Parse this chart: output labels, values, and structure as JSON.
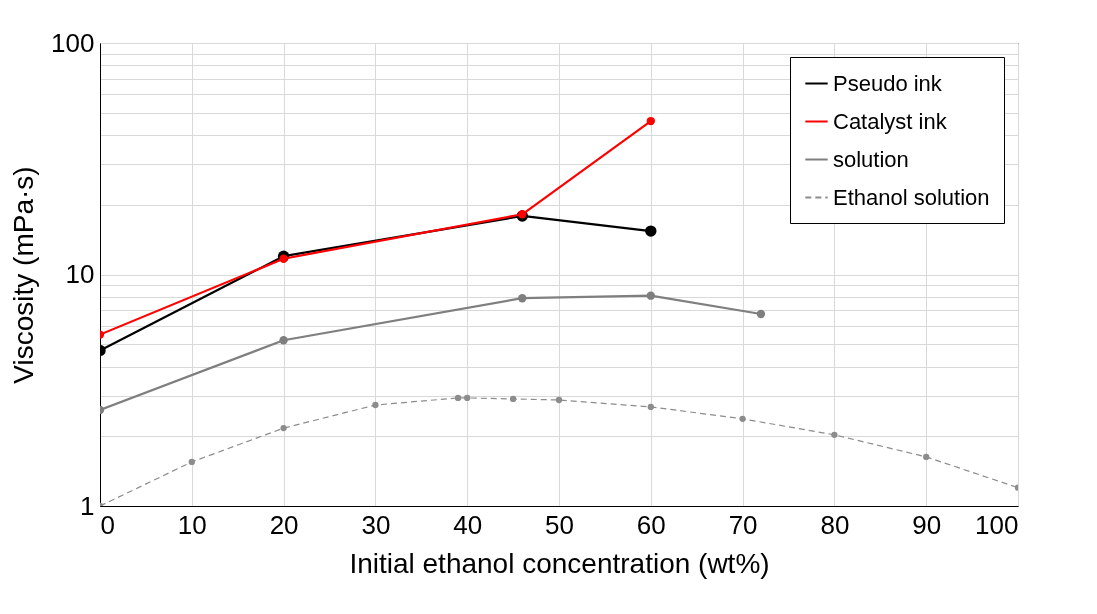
{
  "chart_data": {
    "type": "line",
    "xlabel": "Initial ethanol concentration (wt%)",
    "ylabel": "Viscosity (mPa·s)",
    "log": "y",
    "grid": true,
    "legend": "top right",
    "marker": "circle",
    "xlim": [
      0,
      100
    ],
    "xticks": [
      0,
      10,
      20,
      30,
      40,
      50,
      60,
      70,
      80,
      90,
      100
    ],
    "ylim": [
      1,
      100
    ],
    "yticks": [
      1,
      {
        "value": 2,
        "label": null
      },
      {
        "value": 3,
        "label": null
      },
      {
        "value": 4,
        "label": null
      },
      {
        "value": 5,
        "label": null
      },
      {
        "value": 6,
        "label": null
      },
      {
        "value": 7,
        "label": null
      },
      {
        "value": 8,
        "label": null
      },
      {
        "value": 9,
        "label": null
      },
      10,
      {
        "value": 20,
        "label": null
      },
      {
        "value": 30,
        "label": null
      },
      {
        "value": 40,
        "label": null
      },
      {
        "value": 50,
        "label": null
      },
      {
        "value": 60,
        "label": null
      },
      {
        "value": 70,
        "label": null
      },
      {
        "value": 80,
        "label": null
      },
      {
        "value": 90,
        "label": null
      },
      100
    ],
    "series": [
      {
        "name": "Pseudo ink",
        "color": "#000000",
        "line_style": "solid",
        "x": [
          0,
          20,
          46,
          60
        ],
        "values": [
          4.7,
          12.0,
          17.9,
          15.4
        ]
      },
      {
        "name": "Catalyst ink",
        "color": "#ff0000",
        "line_style": "solid",
        "x": [
          0,
          20,
          46,
          60
        ],
        "values": [
          5.5,
          11.7,
          18.2,
          46
        ]
      },
      {
        "name": "solution",
        "color": "#7f7f7f",
        "line_style": "solid",
        "x": [
          0,
          20,
          46,
          60,
          72
        ],
        "values": [
          2.6,
          5.2,
          7.9,
          8.1,
          6.75
        ]
      },
      {
        "name": "Ethanol solution",
        "color": "#8c8c8c",
        "line_style": "dashed",
        "x": [
          0,
          10,
          20,
          30,
          39,
          40,
          45,
          50,
          60,
          70,
          80,
          90,
          100
        ],
        "values": [
          1.0,
          1.55,
          2.17,
          2.73,
          2.93,
          2.93,
          2.9,
          2.87,
          2.68,
          2.38,
          2.03,
          1.63,
          1.2
        ]
      }
    ]
  }
}
